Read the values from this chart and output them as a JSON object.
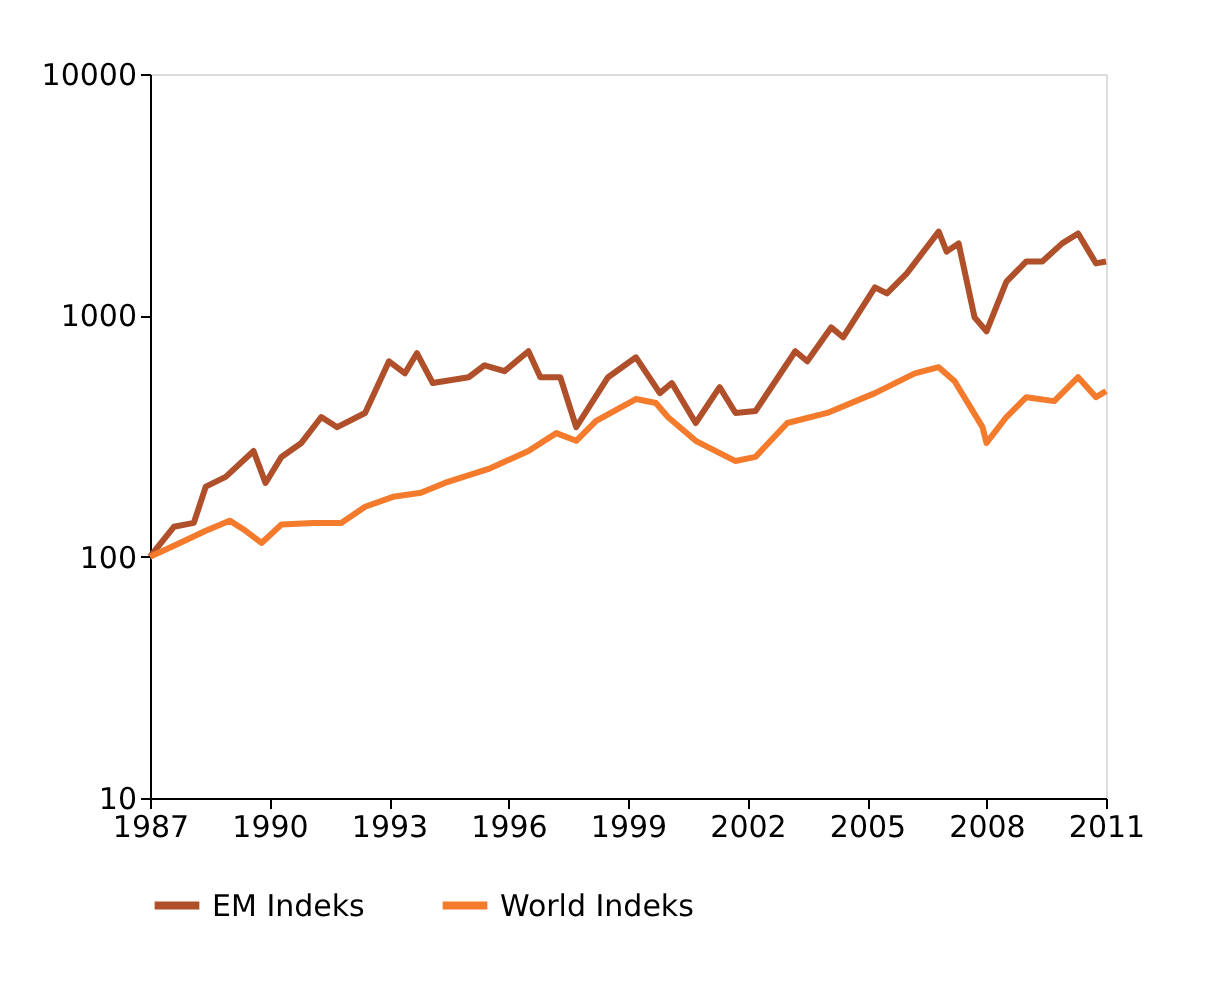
{
  "chart_data": {
    "type": "line",
    "log": "y",
    "grid": false,
    "legend": "bottom",
    "marker": "none",
    "line_style": "solid",
    "xlim": [
      1987,
      2011
    ],
    "xticks": [
      1987,
      1990,
      1993,
      1996,
      1999,
      2002,
      2005,
      2008,
      2011
    ],
    "ylim": [
      10,
      10000
    ],
    "yticks": [
      10,
      100,
      1000,
      10000
    ],
    "series": [
      {
        "name": "EM Indeks",
        "color": "#b0502a",
        "x": [
          1987.0,
          1987.6,
          1988.1,
          1988.4,
          1988.9,
          1989.6,
          1989.9,
          1990.3,
          1990.8,
          1991.3,
          1991.7,
          1992.4,
          1993.0,
          1993.4,
          1993.7,
          1994.1,
          1995.0,
          1995.4,
          1995.9,
          1996.5,
          1996.8,
          1997.3,
          1997.7,
          1998.5,
          1999.2,
          1999.8,
          2000.1,
          2000.7,
          2001.3,
          2001.7,
          2002.2,
          2003.2,
          2003.5,
          2004.1,
          2004.4,
          2005.2,
          2005.5,
          2006.0,
          2006.8,
          2007.0,
          2007.3,
          2007.7,
          2008.0,
          2008.5,
          2009.0,
          2009.4,
          2009.9,
          2010.3,
          2010.75,
          2011.0
        ],
        "values": [
          100,
          133,
          138,
          195,
          214,
          274,
          202,
          259,
          296,
          379,
          344,
          394,
          645,
          575,
          697,
          524,
          554,
          621,
          587,
          710,
          554,
          554,
          344,
          554,
          670,
          476,
          524,
          358,
          504,
          394,
          401,
          710,
          645,
          891,
          811,
          1306,
          1233,
          1493,
          2223,
          1837,
          1987,
          981,
          859,
          1380,
          1672,
          1672,
          1987,
          2183,
          1641,
          1672
        ]
      },
      {
        "name": "World Indeks",
        "color": "#f47a2c",
        "x": [
          1987.0,
          1987.75,
          1988.4,
          1989.0,
          1989.4,
          1989.8,
          1990.3,
          1991.1,
          1991.8,
          1992.4,
          1993.1,
          1993.8,
          1994.4,
          1995.5,
          1996.5,
          1997.2,
          1997.7,
          1998.2,
          1999.2,
          1999.7,
          2000.0,
          2000.7,
          2001.7,
          2002.2,
          2003.0,
          2004.0,
          2005.2,
          2006.2,
          2006.8,
          2007.2,
          2007.9,
          2008.0,
          2008.5,
          2009.0,
          2009.7,
          2010.3,
          2010.75,
          2011.0
        ],
        "values": [
          100,
          114,
          128,
          141,
          128,
          114,
          136,
          138,
          138,
          161,
          177,
          184,
          202,
          231,
          274,
          325,
          302,
          365,
          450,
          433,
          379,
          302,
          249,
          259,
          358,
          394,
          476,
          575,
          610,
          533,
          344,
          296,
          379,
          458,
          441,
          554,
          458,
          485
        ]
      }
    ]
  }
}
